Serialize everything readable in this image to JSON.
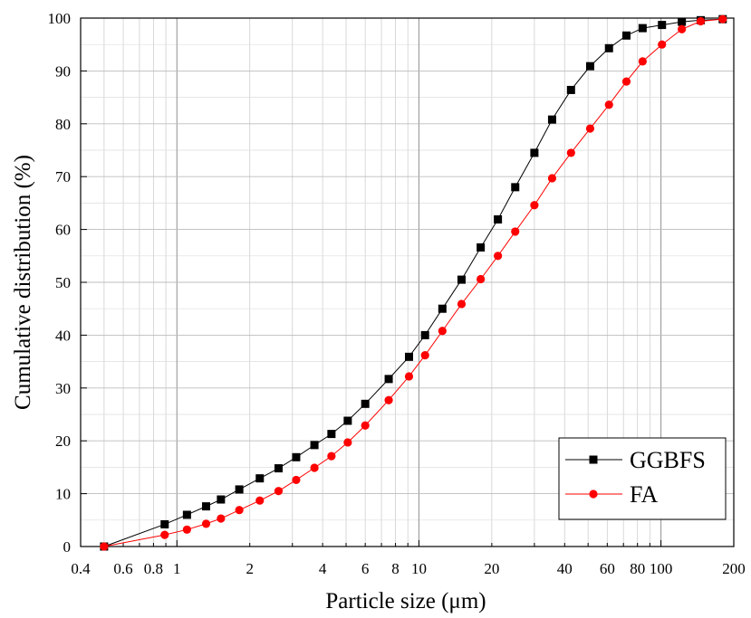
{
  "chart_data": {
    "type": "scatter",
    "title": "",
    "xlabel": "Particle size (μm)",
    "ylabel": "Cumulative distribution (%)",
    "xscale": "log",
    "xlim": [
      0.4,
      200
    ],
    "ylim": [
      0,
      100
    ],
    "grid": true,
    "legend_position": "bottom-right",
    "x_tick_labels": [
      "0.4",
      "0.6",
      "0.8",
      "1",
      "2",
      "4",
      "6",
      "8",
      "10",
      "20",
      "40",
      "60",
      "80",
      "100",
      "200"
    ],
    "y_tick_labels": [
      "0",
      "10",
      "20",
      "30",
      "40",
      "50",
      "60",
      "70",
      "80",
      "90",
      "100"
    ],
    "series": [
      {
        "name": "GGBFS",
        "color": "#000000",
        "marker": "square",
        "x": [
          0.5,
          0.89,
          1.1,
          1.32,
          1.52,
          1.81,
          2.2,
          2.63,
          3.11,
          3.7,
          4.35,
          5.08,
          6.0,
          7.5,
          9.1,
          10.6,
          12.5,
          15.0,
          18.0,
          21.2,
          25.0,
          30.0,
          35.5,
          42.5,
          51.0,
          61.0,
          72.0,
          84.0,
          101.0,
          122.0,
          146.0,
          180.0
        ],
        "y": [
          0.0,
          4.2,
          6.0,
          7.6,
          8.9,
          10.8,
          12.9,
          14.8,
          16.9,
          19.2,
          21.3,
          23.8,
          27.0,
          31.7,
          35.9,
          40.0,
          45.0,
          50.5,
          56.6,
          61.9,
          68.0,
          74.5,
          80.8,
          86.4,
          90.9,
          94.3,
          96.7,
          98.1,
          98.7,
          99.3,
          99.6,
          99.8
        ]
      },
      {
        "name": "FA",
        "color": "#ff0000",
        "marker": "circle",
        "x": [
          0.5,
          0.89,
          1.1,
          1.32,
          1.52,
          1.81,
          2.2,
          2.63,
          3.11,
          3.7,
          4.35,
          5.08,
          6.0,
          7.5,
          9.1,
          10.6,
          12.5,
          15.0,
          18.0,
          21.2,
          25.0,
          30.0,
          35.5,
          42.5,
          51.0,
          61.0,
          72.0,
          84.0,
          101.0,
          122.0,
          146.0,
          180.0
        ],
        "y": [
          0.0,
          2.2,
          3.2,
          4.3,
          5.3,
          6.9,
          8.7,
          10.5,
          12.6,
          14.9,
          17.1,
          19.7,
          22.9,
          27.7,
          32.2,
          36.2,
          40.8,
          45.9,
          50.6,
          55.0,
          59.6,
          64.6,
          69.7,
          74.5,
          79.1,
          83.6,
          88.0,
          91.8,
          95.0,
          97.9,
          99.4,
          99.8
        ]
      }
    ]
  }
}
